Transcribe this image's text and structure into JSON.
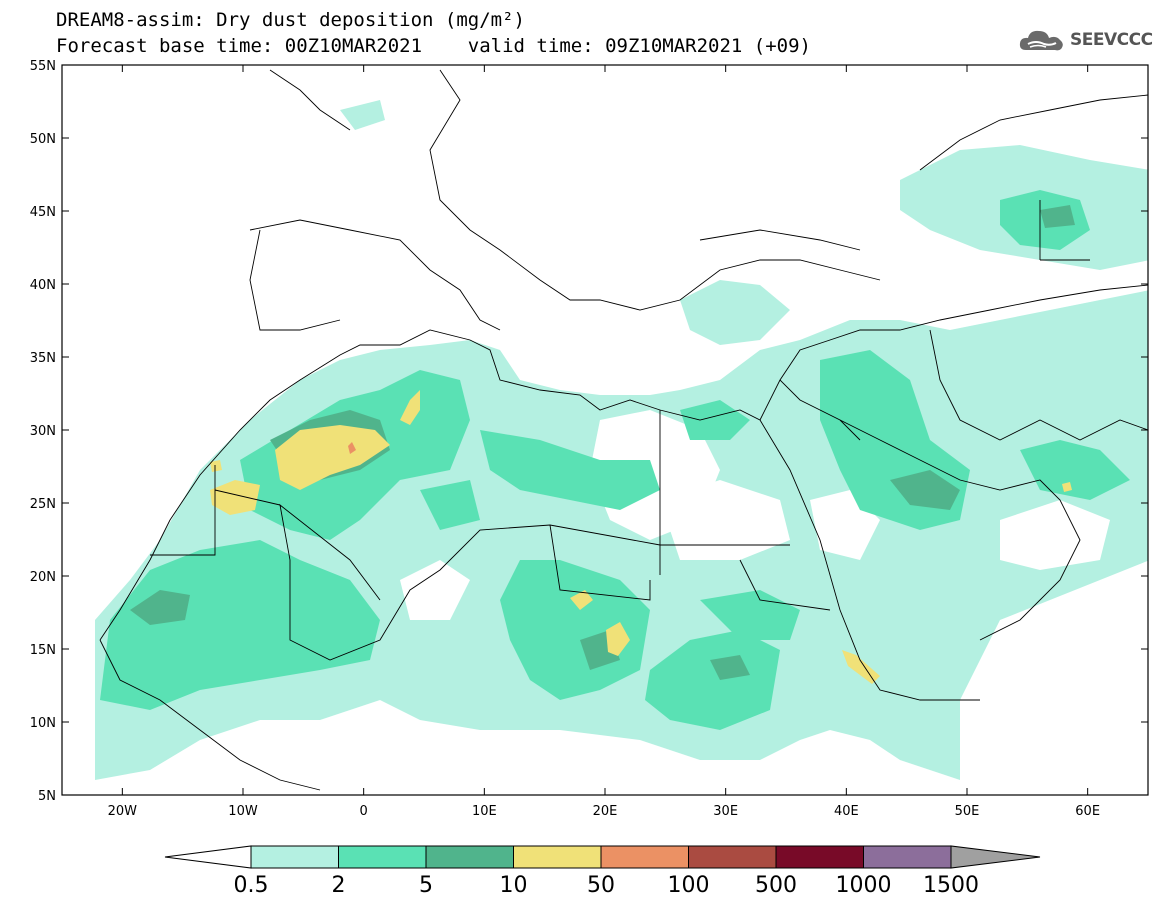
{
  "title_line1": "DREAM8-assim: Dry dust deposition (mg/m²)",
  "title_line2": "Forecast base time: 00Z10MAR2021    valid time: 09Z10MAR2021 (+09)",
  "logo_text": "SEEVCCC",
  "logo_icon": "cloud-icon",
  "map": {
    "lon_range": [
      -25,
      65
    ],
    "lat_range": [
      5,
      55
    ],
    "lat_ticks": [
      "55N",
      "50N",
      "45N",
      "40N",
      "35N",
      "30N",
      "25N",
      "20N",
      "15N",
      "10N",
      "5N"
    ],
    "lon_ticks": [
      "20W",
      "10W",
      "0",
      "10E",
      "20E",
      "30E",
      "40E",
      "50E",
      "60E"
    ]
  },
  "colorbar": {
    "labels": [
      "0.5",
      "2",
      "5",
      "10",
      "50",
      "100",
      "500",
      "1000",
      "1500"
    ],
    "colors": [
      "#b4f0e1",
      "#5ae1b4",
      "#50b48c",
      "#f0e178",
      "#eb9164",
      "#aa4b41",
      "#780a28",
      "#8c6e9b",
      "#a0a0a0"
    ]
  }
}
